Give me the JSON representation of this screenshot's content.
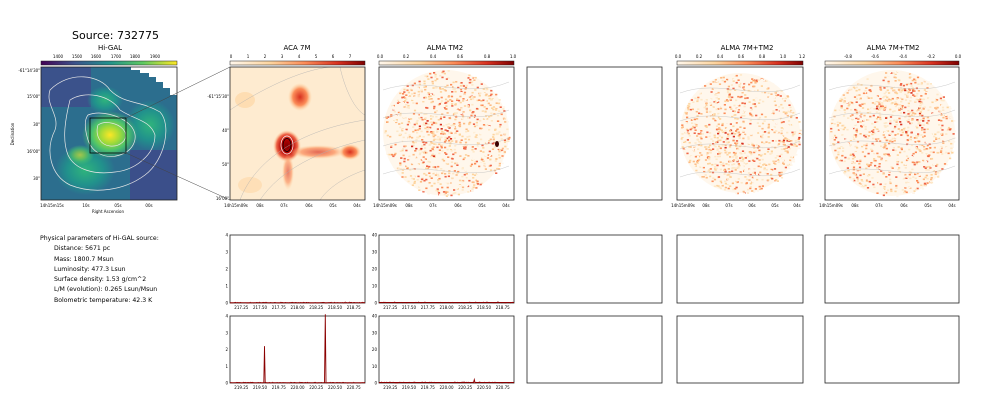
{
  "source_title": "Source: 732775",
  "panel_titles": [
    "Hi-GAL",
    "ACA 7M",
    "ALMA TM2",
    "ALMA 7M+TM2",
    "ALMA 7M+TM2"
  ],
  "params": {
    "heading": "Physical parameters of Hi-GAL source:",
    "lines": [
      "Distance: 5671 pc",
      "Mass: 1800.7 Msun",
      "Luminosity: 477.3 Lsun",
      "Surface density: 1.53 g/cm^2",
      "L/M (evolution): 0.265 Lsun/Msun",
      "Bolometric temperature: 42.3 K"
    ]
  },
  "chart_data": [
    {
      "type": "heatmap",
      "title": "Hi-GAL",
      "colormap": "viridis",
      "colorbar_ticks": [
        "1400",
        "1500",
        "1600",
        "1700",
        "1800",
        "1900"
      ],
      "xlabel": "Right Ascension",
      "ylabel": "Declination",
      "x_ticks": [
        "14h15m15s",
        "10s",
        "05s",
        "00s"
      ],
      "y_ticks": [
        "-61°14'30\"",
        "15'00\"",
        "30\"",
        "16'00\"",
        "30\""
      ]
    },
    {
      "type": "heatmap",
      "title": "ACA 7M",
      "colormap": "OrRd",
      "colorbar_ticks": [
        "0",
        "1",
        "2",
        "3",
        "4",
        "5",
        "6",
        "7"
      ],
      "x_ticks": [
        "14h15m09s",
        "08s",
        "07s",
        "06s",
        "05s",
        "04s"
      ],
      "y_ticks": [
        "-61°15'30\"",
        "40\"",
        "50\"",
        "16'00\""
      ]
    },
    {
      "type": "heatmap",
      "title": "ALMA TM2",
      "colormap": "OrRd",
      "colorbar_ticks": [
        "0.0",
        "0.2",
        "0.4",
        "0.6",
        "0.8",
        "1.0"
      ],
      "x_ticks": [
        "14h15m09s",
        "08s",
        "07s",
        "06s",
        "05s",
        "04s"
      ]
    },
    {
      "type": "heatmap",
      "title": "ALMA 7M+TM2",
      "colormap": "OrRd",
      "colorbar_ticks": [
        "0.0",
        "0.2",
        "0.4",
        "0.6",
        "0.8",
        "1.0",
        "1.2"
      ],
      "x_ticks": [
        "14h15m09s",
        "08s",
        "07s",
        "06s",
        "05s",
        "04s"
      ]
    },
    {
      "type": "heatmap",
      "title": "ALMA 7M+TM2",
      "colormap": "OrRd",
      "colorbar_ticks": [
        "-0.8",
        "-0.6",
        "-0.4",
        "-0.2",
        "0.0"
      ],
      "x_ticks": [
        "14h15m09s",
        "08s",
        "07s",
        "06s",
        "05s",
        "04s"
      ]
    },
    {
      "type": "line",
      "panel": "ACA 7M spectrum, row 1",
      "ylim": [
        0,
        4
      ],
      "y_ticks": [
        "0",
        "1",
        "2",
        "3",
        "4"
      ],
      "xlim": [
        217.1,
        218.9
      ],
      "x_ticks": [
        "217.25",
        "217.50",
        "217.75",
        "218.00",
        "218.25",
        "218.50",
        "218.75"
      ],
      "series": [
        {
          "x": [
            217.1,
            218.9
          ],
          "values": [
            0.02,
            0.02
          ]
        }
      ]
    },
    {
      "type": "line",
      "panel": "ALMA TM2 spectrum, row 1",
      "ylim": [
        0,
        40
      ],
      "y_ticks": [
        "0",
        "10",
        "20",
        "30",
        "40"
      ],
      "xlim": [
        217.1,
        218.9
      ],
      "x_ticks": [
        "217.25",
        "217.50",
        "217.75",
        "218.00",
        "218.25",
        "218.50",
        "218.75"
      ],
      "series": [
        {
          "x": [
            217.1,
            218.9
          ],
          "values": [
            0.3,
            0.3
          ]
        }
      ]
    },
    {
      "type": "line",
      "panel": "ACA 7M spectrum, row 2",
      "ylim": [
        0,
        4
      ],
      "y_ticks": [
        "0",
        "1",
        "2",
        "3",
        "4"
      ],
      "xlim": [
        219.1,
        220.9
      ],
      "x_ticks": [
        "219.25",
        "219.50",
        "219.75",
        "220.00",
        "220.25",
        "220.50",
        "220.75"
      ],
      "series": [
        {
          "x": [
            219.1,
            219.55,
            219.56,
            219.57,
            220.36,
            220.37,
            220.38,
            220.9
          ],
          "values": [
            0.02,
            0.02,
            2.2,
            0.02,
            0.02,
            4.1,
            0.02,
            0.02
          ]
        }
      ]
    },
    {
      "type": "line",
      "panel": "ALMA TM2 spectrum, row 2",
      "ylim": [
        0,
        40
      ],
      "y_ticks": [
        "0",
        "10",
        "20",
        "30",
        "40"
      ],
      "xlim": [
        219.1,
        220.9
      ],
      "x_ticks": [
        "219.25",
        "219.50",
        "219.75",
        "220.00",
        "220.25",
        "220.50",
        "220.75"
      ],
      "series": [
        {
          "x": [
            219.1,
            220.36,
            220.37,
            220.38,
            220.9
          ],
          "values": [
            0.3,
            0.3,
            2.0,
            0.3,
            0.3
          ]
        }
      ]
    }
  ]
}
